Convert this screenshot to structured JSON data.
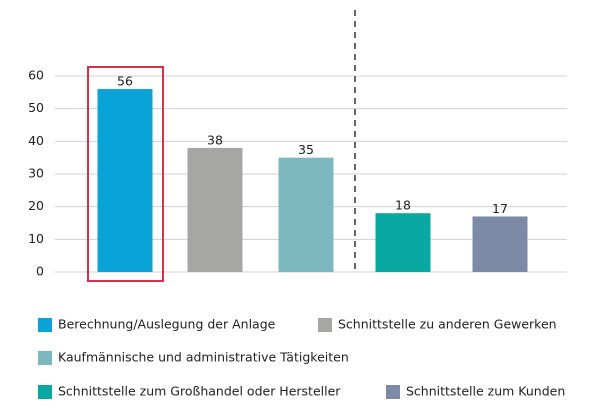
{
  "chart_data": {
    "type": "bar",
    "categories": [
      "Berechnung/Auslegung der Anlage",
      "Schnittstelle zu anderen Gewerken",
      "Kaufmännische und administrative Tätigkeiten",
      "Schnittstelle zum Großhandel oder Hersteller",
      "Schnittstelle zum Kunden"
    ],
    "values": [
      56,
      38,
      35,
      18,
      17
    ],
    "colors": [
      "#0aa3d8",
      "#a6a6a5",
      "#7db8bf",
      "#0aa8a3",
      "#7d8aa6"
    ],
    "ylim": [
      0,
      60
    ],
    "yticks": [
      0,
      10,
      20,
      30,
      40,
      50,
      60
    ],
    "grid": true,
    "legend": "bottom"
  }
}
